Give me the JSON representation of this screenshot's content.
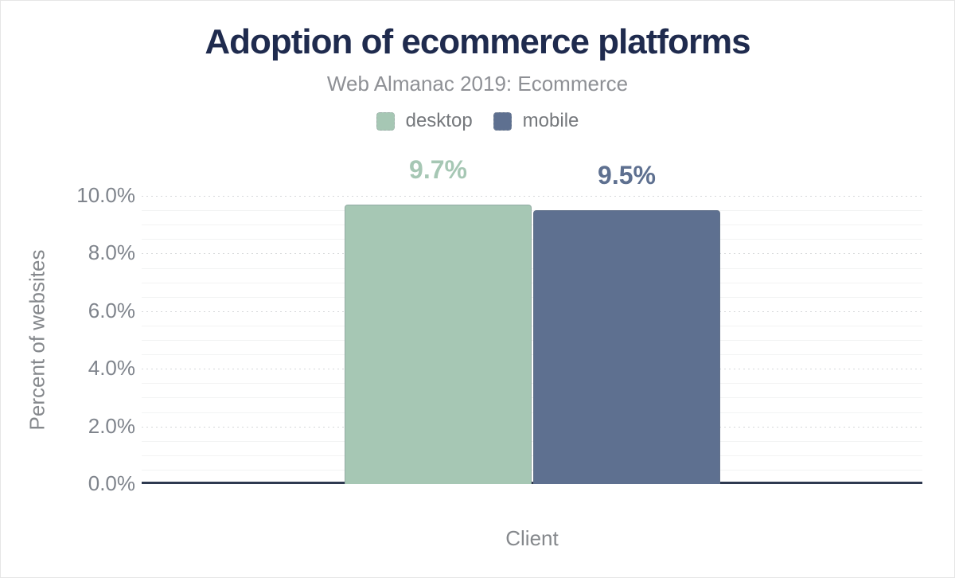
{
  "colors": {
    "title": "#1f2b4e",
    "subtitle": "#8e9095",
    "legend_text": "#75787c",
    "tick_text": "#7f848c",
    "axis_title_text": "#85888c",
    "axis_line": "#2e3950",
    "grid_major": "#d6d8da",
    "grid_minor": "#f2f3f3",
    "desktop": "#a6c7b4",
    "mobile": "#5e7090"
  },
  "chart_data": {
    "type": "bar",
    "title": "Adoption of ecommerce platforms",
    "subtitle": "Web Almanac 2019: Ecommerce",
    "xlabel": "Client",
    "ylabel": "Percent of websites",
    "ylim": [
      0,
      10
    ],
    "categories": [
      "Client"
    ],
    "series": [
      {
        "name": "desktop",
        "value": 9.7,
        "label": "9.7%",
        "color": "#a6c7b4"
      },
      {
        "name": "mobile",
        "value": 9.5,
        "label": "9.5%",
        "color": "#5e7090"
      }
    ],
    "yticks": [
      {
        "label": "0.0%",
        "value": 0
      },
      {
        "label": "2.0%",
        "value": 2
      },
      {
        "label": "4.0%",
        "value": 4
      },
      {
        "label": "6.0%",
        "value": 6
      },
      {
        "label": "8.0%",
        "value": 8
      },
      {
        "label": "10.0%",
        "value": 10
      }
    ],
    "minor_grid_step": 0.5,
    "major_grid_step": 2,
    "grid": "on",
    "legend_position": "top"
  }
}
